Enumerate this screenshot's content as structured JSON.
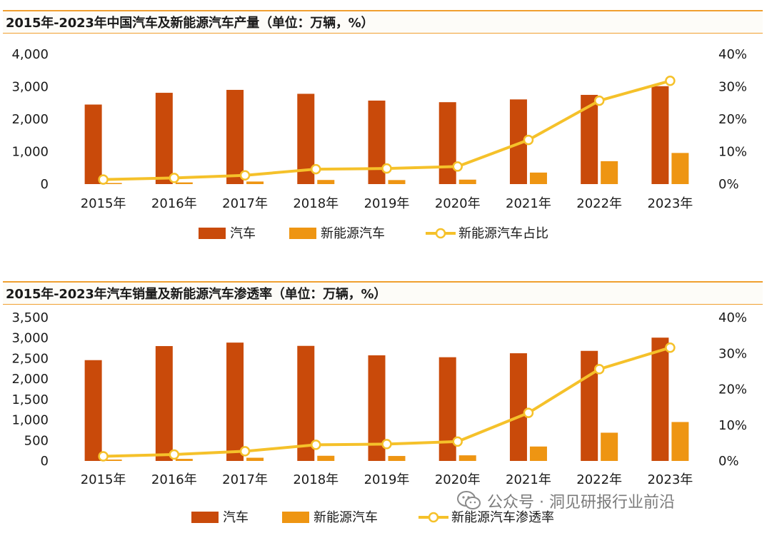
{
  "watermark": {
    "icon": "wechat-icon",
    "text": "公众号 · 洞见研报行业前沿"
  },
  "colors": {
    "car": "#c94a0a",
    "nev": "#ee9512",
    "ratio": "#f5c12a",
    "title_line": "#f0a030"
  },
  "chart_data": [
    {
      "type": "bar",
      "title": "2015年-2023年中国汽车及新能源汽车产量（单位：万辆，%）",
      "categories": [
        "2015年",
        "2016年",
        "2017年",
        "2018年",
        "2019年",
        "2020年",
        "2021年",
        "2022年",
        "2023年"
      ],
      "series": [
        {
          "name": "汽车",
          "type": "bar",
          "axis": "left",
          "values": [
            2450,
            2812,
            2902,
            2781,
            2572,
            2523,
            2608,
            2748,
            3016
          ]
        },
        {
          "name": "新能源汽车",
          "type": "bar",
          "axis": "left",
          "values": [
            34,
            52,
            79,
            127,
            124,
            137,
            355,
            706,
            959
          ]
        },
        {
          "name": "新能源汽车占比",
          "type": "line",
          "axis": "right",
          "values": [
            1.4,
            1.9,
            2.7,
            4.6,
            4.8,
            5.4,
            13.6,
            25.7,
            31.8
          ]
        }
      ],
      "left_axis": {
        "min": 0,
        "max": 4000,
        "ticks": [
          "0",
          "1,000",
          "2,000",
          "3,000",
          "4,000"
        ]
      },
      "right_axis": {
        "min": 0,
        "max": 40,
        "ticks": [
          "0%",
          "10%",
          "20%",
          "30%",
          "40%"
        ]
      },
      "legend_position": "bottom",
      "grid": false
    },
    {
      "type": "bar",
      "title": "2015年-2023年汽车销量及新能源汽车渗透率（单位：万辆，%）",
      "categories": [
        "2015年",
        "2016年",
        "2017年",
        "2018年",
        "2019年",
        "2020年",
        "2021年",
        "2022年",
        "2023年"
      ],
      "series": [
        {
          "name": "汽车",
          "type": "bar",
          "axis": "left",
          "values": [
            2460,
            2803,
            2888,
            2808,
            2577,
            2531,
            2628,
            2686,
            3009
          ]
        },
        {
          "name": "新能源汽车",
          "type": "bar",
          "axis": "left",
          "values": [
            33,
            51,
            78,
            126,
            121,
            137,
            352,
            689,
            950
          ]
        },
        {
          "name": "新能源汽车渗透率",
          "type": "line",
          "axis": "right",
          "values": [
            1.3,
            1.8,
            2.7,
            4.5,
            4.7,
            5.4,
            13.4,
            25.6,
            31.6
          ]
        }
      ],
      "left_axis": {
        "min": 0,
        "max": 3500,
        "ticks": [
          "0",
          "500",
          "1,000",
          "1,500",
          "2,000",
          "2,500",
          "3,000",
          "3,500"
        ]
      },
      "right_axis": {
        "min": 0,
        "max": 40,
        "ticks": [
          "0%",
          "10%",
          "20%",
          "30%",
          "40%"
        ]
      },
      "legend_position": "bottom",
      "grid": false
    }
  ]
}
